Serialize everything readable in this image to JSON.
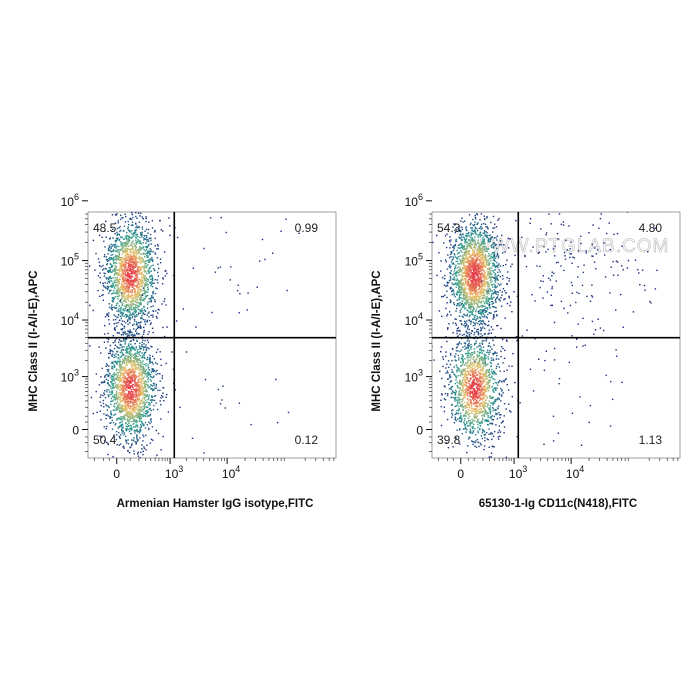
{
  "chart_data": [
    {
      "type": "scatter",
      "subtype": "flow-cytometry-pseudocolor-dot-plot",
      "xlabel": "Armenian Hamster IgG isotype,FITC",
      "ylabel": "MHC Class II (I-A/I-E),APC",
      "x_ticks": [
        {
          "base": "0",
          "exp": ""
        },
        {
          "base": "10",
          "exp": "3"
        },
        {
          "base": "10",
          "exp": "4"
        }
      ],
      "y_ticks": [
        {
          "base": "0",
          "exp": ""
        },
        {
          "base": "10",
          "exp": "3"
        },
        {
          "base": "10",
          "exp": "4"
        },
        {
          "base": "10",
          "exp": "5"
        },
        {
          "base": "10",
          "exp": "6"
        }
      ],
      "gate": {
        "x": 1200,
        "y": 5000
      },
      "quadrants": {
        "upper_left": "48.5",
        "upper_right": "0.99",
        "lower_left": "50.4",
        "lower_right": "0.12"
      },
      "populations": [
        {
          "x": 100,
          "y": 60000,
          "share": 0.485
        },
        {
          "x": 100,
          "y": 600,
          "share": 0.504
        },
        {
          "x": 6000,
          "y": 80000,
          "share": 0.0099
        },
        {
          "x": 6000,
          "y": 600,
          "share": 0.0012
        }
      ],
      "watermark": ""
    },
    {
      "type": "scatter",
      "subtype": "flow-cytometry-pseudocolor-dot-plot",
      "xlabel": "65130-1-Ig CD11c(N418),FITC",
      "ylabel": "MHC Class II (I-A/I-E),APC",
      "x_ticks": [
        {
          "base": "0",
          "exp": ""
        },
        {
          "base": "10",
          "exp": "3"
        },
        {
          "base": "10",
          "exp": "4"
        }
      ],
      "y_ticks": [
        {
          "base": "0",
          "exp": ""
        },
        {
          "base": "10",
          "exp": "3"
        },
        {
          "base": "10",
          "exp": "4"
        },
        {
          "base": "10",
          "exp": "5"
        },
        {
          "base": "10",
          "exp": "6"
        }
      ],
      "gate": {
        "x": 1200,
        "y": 5000
      },
      "quadrants": {
        "upper_left": "54.3",
        "upper_right": "4.80",
        "lower_left": "39.8",
        "lower_right": "1.13"
      },
      "populations": [
        {
          "x": 100,
          "y": 60000,
          "share": 0.543
        },
        {
          "x": 100,
          "y": 600,
          "share": 0.398
        },
        {
          "x": 9000,
          "y": 70000,
          "share": 0.048
        },
        {
          "x": 6000,
          "y": 600,
          "share": 0.0113
        }
      ],
      "watermark": "WWW.PTGLAB.COM"
    }
  ],
  "colors": {
    "density_low": "#1a237e",
    "density_mid": "#2a9d8f",
    "density_high": "#e9c46a",
    "density_peak": "#e63946",
    "gate_line": "#000000",
    "frame": "#888888"
  }
}
